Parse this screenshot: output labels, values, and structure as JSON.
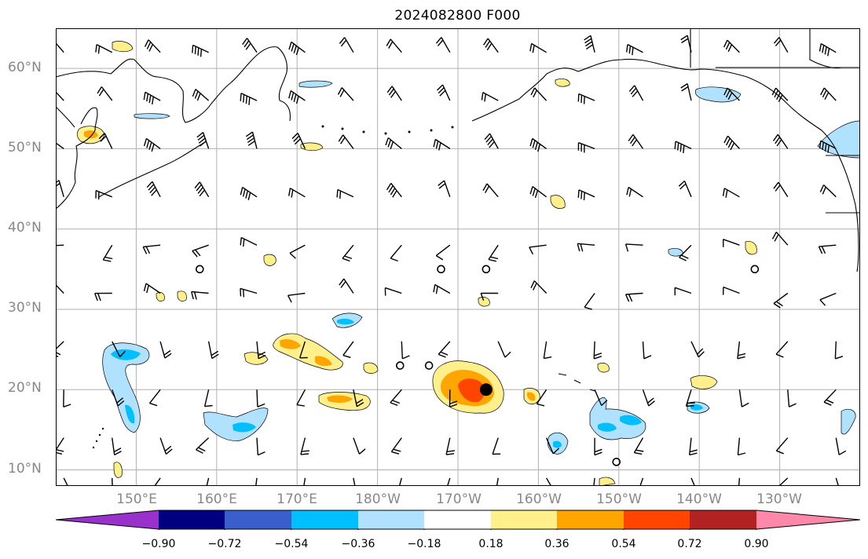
{
  "title": "2024082800 F000",
  "map": {
    "lat_labels": [
      "60°N",
      "50°N",
      "40°N",
      "30°N",
      "20°N",
      "10°N"
    ],
    "lon_labels": [
      "150°E",
      "160°E",
      "170°E",
      "180°W",
      "170°W",
      "160°W",
      "150°W",
      "140°W",
      "130°W"
    ],
    "lon_range_deg_east": [
      140,
      240
    ],
    "lat_range": [
      8,
      65
    ],
    "storm_center": {
      "lon": 193.5,
      "lat": 20.0
    },
    "calm_markers": [
      {
        "lon": 187.9,
        "lat": 35.0
      },
      {
        "lon": 157.9,
        "lat": 35.0
      },
      {
        "lon": 193.5,
        "lat": 35.0
      },
      {
        "lon": 226.9,
        "lat": 35.0
      },
      {
        "lon": 182.8,
        "lat": 23.0
      },
      {
        "lon": 186.4,
        "lat": 23.0
      },
      {
        "lon": 209.7,
        "lat": 11.0
      }
    ]
  },
  "colorbar": {
    "ticks": [
      "−0.90",
      "−0.72",
      "−0.54",
      "−0.36",
      "−0.18",
      "0.18",
      "0.36",
      "0.54",
      "0.72",
      "0.90"
    ],
    "colors": [
      "#9932cc",
      "#000080",
      "#3a5fcd",
      "#00bfff",
      "#b0e2ff",
      "#ffffff",
      "#fff08c",
      "#ffa500",
      "#ff4500",
      "#b22222",
      "#ff88aa"
    ]
  }
}
